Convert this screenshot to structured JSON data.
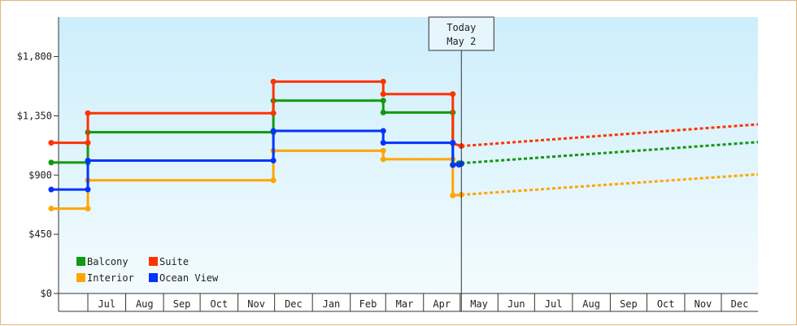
{
  "chart_data": {
    "type": "line",
    "step": true,
    "title": "",
    "xlabel": "",
    "ylabel": "",
    "ylim": [
      0,
      2100
    ],
    "yticks": [
      0,
      450,
      900,
      1350,
      1800
    ],
    "ytick_labels": [
      "$0",
      "$450",
      "$900",
      "$1,350",
      "$1,800"
    ],
    "x_months": [
      "Jul",
      "Aug",
      "Sep",
      "Oct",
      "Nov",
      "Dec",
      "Jan",
      "Feb",
      "Mar",
      "Apr",
      "May",
      "Jun",
      "Jul",
      "Aug",
      "Sep",
      "Oct",
      "Nov",
      "Dec"
    ],
    "today_marker": {
      "line1": "Today",
      "line2": "May 2",
      "x": "2024-05-02"
    },
    "legend": {
      "position": "bottom-left"
    },
    "background": {
      "top": "#cdeefb",
      "bottom": "#f3fbfe"
    },
    "series": [
      {
        "name": "Balcony",
        "color": "#119911",
        "points": [
          [
            "2023-06-01",
            995
          ],
          [
            "2023-07-01",
            995
          ],
          [
            "2023-07-01",
            1225
          ],
          [
            "2023-11-30",
            1225
          ],
          [
            "2023-11-30",
            1465
          ],
          [
            "2024-02-28",
            1465
          ],
          [
            "2024-02-28",
            1375
          ],
          [
            "2024-04-25",
            1375
          ],
          [
            "2024-04-25",
            980
          ],
          [
            "2024-04-30",
            990
          ],
          [
            "2024-05-02",
            990
          ]
        ],
        "forecast": [
          [
            "2024-05-02",
            990
          ],
          [
            "2024-12-31",
            1150
          ]
        ]
      },
      {
        "name": "Suite",
        "color": "#ff3300",
        "points": [
          [
            "2023-06-01",
            1145
          ],
          [
            "2023-07-01",
            1145
          ],
          [
            "2023-07-01",
            1370
          ],
          [
            "2023-11-30",
            1370
          ],
          [
            "2023-11-30",
            1610
          ],
          [
            "2024-02-28",
            1610
          ],
          [
            "2024-02-28",
            1515
          ],
          [
            "2024-04-25",
            1515
          ],
          [
            "2024-04-25",
            1140
          ],
          [
            "2024-05-02",
            1120
          ]
        ],
        "forecast": [
          [
            "2024-05-02",
            1120
          ],
          [
            "2024-12-31",
            1285
          ]
        ]
      },
      {
        "name": "Interior",
        "color": "#ffa500",
        "points": [
          [
            "2023-06-01",
            645
          ],
          [
            "2023-07-01",
            645
          ],
          [
            "2023-07-01",
            860
          ],
          [
            "2023-11-30",
            860
          ],
          [
            "2023-11-30",
            1085
          ],
          [
            "2024-02-28",
            1085
          ],
          [
            "2024-02-28",
            1020
          ],
          [
            "2024-04-25",
            1020
          ],
          [
            "2024-04-25",
            745
          ],
          [
            "2024-05-02",
            750
          ]
        ],
        "forecast": [
          [
            "2024-05-02",
            750
          ],
          [
            "2024-12-31",
            905
          ]
        ]
      },
      {
        "name": "Ocean View",
        "color": "#0033ff",
        "points": [
          [
            "2023-06-01",
            790
          ],
          [
            "2023-07-01",
            790
          ],
          [
            "2023-07-01",
            1010
          ],
          [
            "2023-11-30",
            1010
          ],
          [
            "2023-11-30",
            1235
          ],
          [
            "2024-02-28",
            1235
          ],
          [
            "2024-02-28",
            1145
          ],
          [
            "2024-04-25",
            1145
          ],
          [
            "2024-04-25",
            975
          ],
          [
            "2024-04-30",
            978
          ],
          [
            "2024-05-02",
            985
          ]
        ]
      }
    ]
  }
}
